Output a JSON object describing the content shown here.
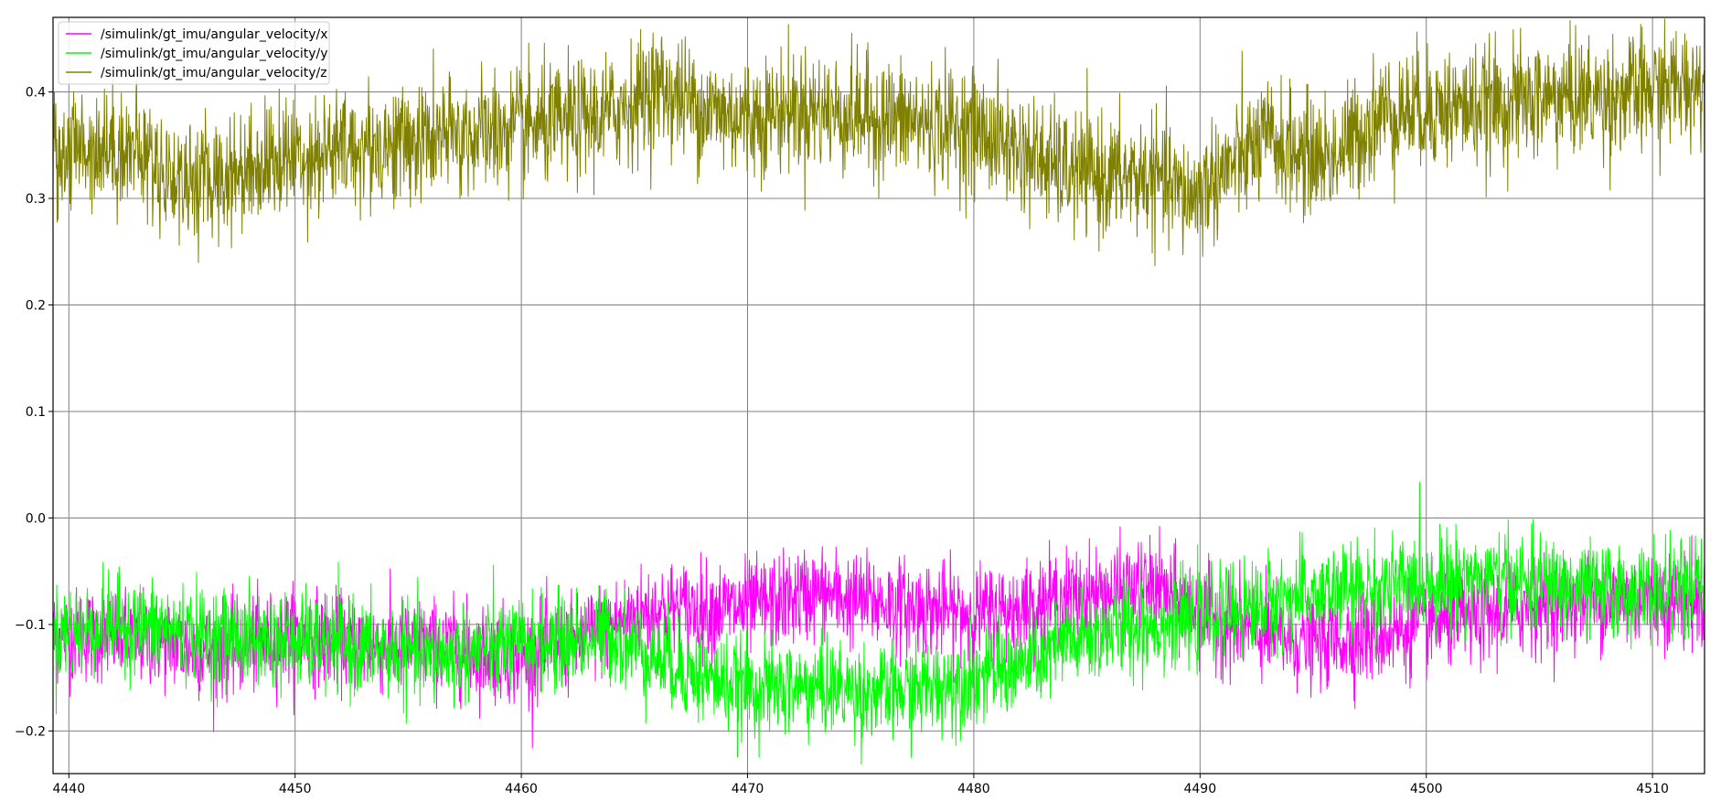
{
  "chart_data": {
    "type": "line",
    "title": "",
    "xlabel": "",
    "ylabel": "",
    "xlim": [
      4439.3,
      4512.3
    ],
    "ylim": [
      -0.24,
      0.47
    ],
    "grid": true,
    "legend_position": "top-left",
    "x_ticks": [
      4440,
      4450,
      4460,
      4470,
      4480,
      4490,
      4500,
      4510
    ],
    "y_ticks": [
      -0.2,
      -0.1,
      0.0,
      0.1,
      0.2,
      0.3,
      0.4
    ],
    "x_tick_labels": [
      "4440",
      "4450",
      "4460",
      "4470",
      "4480",
      "4490",
      "4500",
      "4510"
    ],
    "y_tick_labels": [
      "−0.2",
      "−0.1",
      "0.0",
      "0.1",
      "0.2",
      "0.3",
      "0.4"
    ],
    "series": [
      {
        "name": "/simulink/gt_imu/angular_velocity/x",
        "color": "#ff00ff",
        "noise": 0.022,
        "x": [
          4439.3,
          4442,
          4444,
          4446,
          4448,
          4450,
          4452,
          4454,
          4456,
          4458,
          4460,
          4462,
          4464,
          4466,
          4468,
          4470,
          4472,
          4473,
          4474,
          4476,
          4478,
          4480,
          4482,
          4484,
          4486,
          4488,
          4490,
          4492,
          4494,
          4496,
          4498,
          4500,
          4502,
          4504,
          4506,
          4508,
          4510,
          4512.3
        ],
        "y": [
          -0.11,
          -0.11,
          -0.115,
          -0.125,
          -0.12,
          -0.11,
          -0.115,
          -0.12,
          -0.12,
          -0.125,
          -0.13,
          -0.12,
          -0.1,
          -0.085,
          -0.085,
          -0.085,
          -0.075,
          -0.07,
          -0.075,
          -0.08,
          -0.085,
          -0.09,
          -0.085,
          -0.075,
          -0.07,
          -0.065,
          -0.09,
          -0.105,
          -0.115,
          -0.115,
          -0.11,
          -0.1,
          -0.095,
          -0.085,
          -0.08,
          -0.075,
          -0.075,
          -0.08
        ]
      },
      {
        "name": "/simulink/gt_imu/angular_velocity/y",
        "color": "#00ff00",
        "noise": 0.022,
        "x": [
          4439.3,
          4442,
          4444,
          4446,
          4448,
          4450,
          4452,
          4454,
          4456,
          4458,
          4460,
          4462,
          4464,
          4466,
          4468,
          4470,
          4472,
          4474,
          4476,
          4478,
          4480,
          4482,
          4484,
          4486,
          4488,
          4490,
          4492,
          4494,
          4496,
          4498,
          4500,
          4502,
          4504,
          4506,
          4508,
          4510,
          4512.3
        ],
        "y": [
          -0.11,
          -0.1,
          -0.105,
          -0.11,
          -0.115,
          -0.115,
          -0.12,
          -0.125,
          -0.13,
          -0.125,
          -0.12,
          -0.115,
          -0.11,
          -0.13,
          -0.15,
          -0.16,
          -0.16,
          -0.16,
          -0.165,
          -0.16,
          -0.15,
          -0.14,
          -0.12,
          -0.105,
          -0.1,
          -0.095,
          -0.085,
          -0.075,
          -0.07,
          -0.065,
          -0.06,
          -0.055,
          -0.06,
          -0.065,
          -0.07,
          -0.07,
          -0.065
        ]
      },
      {
        "name": "/simulink/gt_imu/angular_velocity/z",
        "color": "#808000",
        "noise": 0.028,
        "x": [
          4439.3,
          4441,
          4443,
          4444.5,
          4446,
          4448,
          4450,
          4452,
          4454,
          4456,
          4458,
          4460,
          4462,
          4464,
          4466,
          4468,
          4470,
          4472,
          4474,
          4476,
          4478,
          4480,
          4482,
          4484,
          4486,
          4488,
          4489.5,
          4491,
          4493,
          4494.5,
          4496,
          4498,
          4500,
          4502,
          4504,
          4506,
          4508,
          4510,
          4512.3
        ],
        "y": [
          0.34,
          0.35,
          0.345,
          0.32,
          0.315,
          0.33,
          0.34,
          0.345,
          0.35,
          0.355,
          0.36,
          0.365,
          0.37,
          0.38,
          0.405,
          0.385,
          0.375,
          0.385,
          0.38,
          0.375,
          0.37,
          0.365,
          0.345,
          0.325,
          0.32,
          0.32,
          0.3,
          0.325,
          0.355,
          0.34,
          0.34,
          0.38,
          0.385,
          0.385,
          0.39,
          0.395,
          0.395,
          0.4,
          0.41
        ]
      }
    ]
  }
}
